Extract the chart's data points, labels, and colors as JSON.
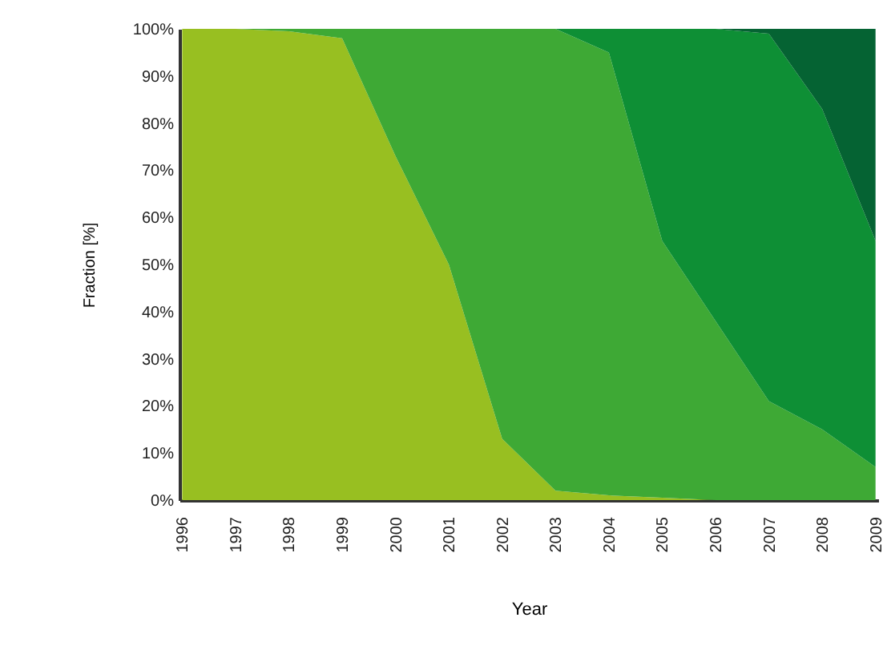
{
  "chart_data": {
    "type": "area",
    "stacked": true,
    "xlabel": "Year",
    "ylabel": "Fraction [%]",
    "categories": [
      "1996",
      "1997",
      "1998",
      "1999",
      "2000",
      "2001",
      "2002",
      "2003",
      "2004",
      "2005",
      "2006",
      "2007",
      "2008",
      "2009"
    ],
    "series": [
      {
        "color": "#98bf21",
        "values": [
          100,
          100,
          99.5,
          98,
          73,
          50,
          13,
          2,
          1,
          0.5,
          0,
          null,
          null,
          null
        ]
      },
      {
        "color": "#3ea935",
        "values": [
          null,
          0,
          0.5,
          2,
          27,
          50,
          87,
          98,
          94,
          54.5,
          38,
          21,
          15,
          7
        ]
      },
      {
        "color": "#0e8f35",
        "values": [
          null,
          null,
          null,
          null,
          null,
          null,
          null,
          0,
          5,
          45,
          62,
          78,
          68,
          48
        ]
      },
      {
        "color": "#056333",
        "values": [
          null,
          null,
          null,
          null,
          null,
          null,
          null,
          null,
          null,
          null,
          0,
          1,
          17,
          45
        ]
      }
    ],
    "ylim": [
      0,
      100
    ],
    "yticks": [
      {
        "value": 0,
        "label": "0%"
      },
      {
        "value": 10,
        "label": "10%"
      },
      {
        "value": 20,
        "label": "20%"
      },
      {
        "value": 30,
        "label": "30%"
      },
      {
        "value": 40,
        "label": "40%"
      },
      {
        "value": 50,
        "label": "50%"
      },
      {
        "value": 60,
        "label": "60%"
      },
      {
        "value": 70,
        "label": "70%"
      },
      {
        "value": 80,
        "label": "80%"
      },
      {
        "value": 90,
        "label": "90%"
      },
      {
        "value": 100,
        "label": "100%"
      }
    ],
    "grid": false
  }
}
